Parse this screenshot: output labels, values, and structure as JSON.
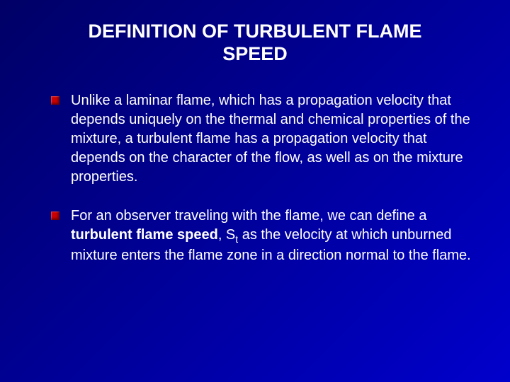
{
  "background_gradient": [
    "#000066",
    "#000099",
    "#0000cc"
  ],
  "text_color": "#ffffff",
  "bullet_color": "#cc0000",
  "title": {
    "line1": "DEFINITION OF TURBULENT FLAME",
    "line2": "SPEED",
    "fontsize": 27,
    "weight": "bold"
  },
  "bullets": [
    {
      "text": "Unlike a laminar flame, which has a propagation velocity that depends uniquely on the thermal and chemical properties of the mixture, a turbulent flame has a propagation velocity that depends on the character of the flow, as well as on the mixture properties."
    },
    {
      "pre": "For an observer traveling with the flame, we can define a ",
      "term": "turbulent flame speed",
      "mid": ", S",
      "sub": "t",
      "post": " as the velocity at which unburned mixture enters the flame zone in a direction normal to the flame."
    }
  ],
  "body_fontsize": 20
}
